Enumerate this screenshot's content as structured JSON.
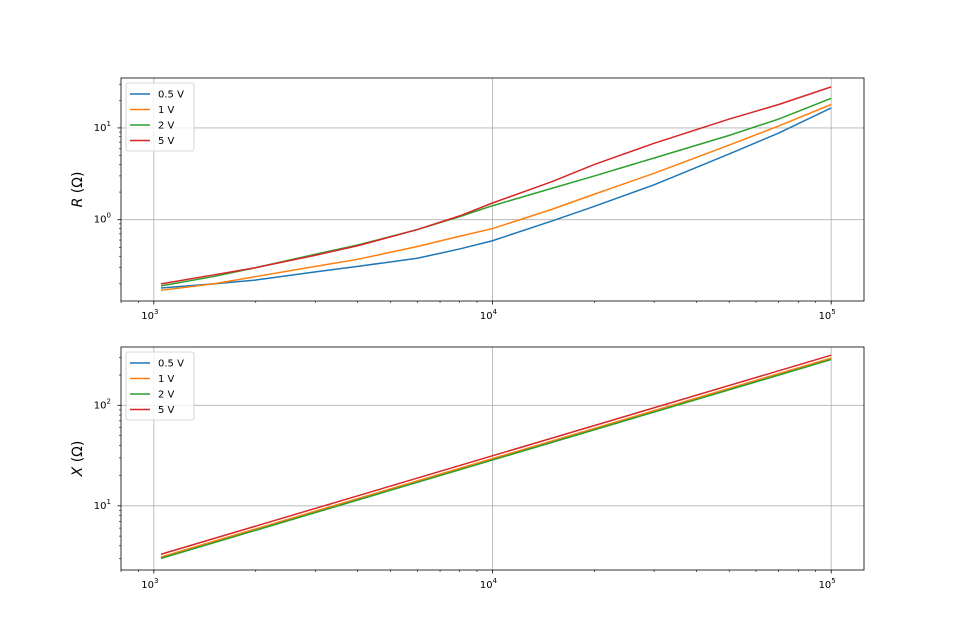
{
  "chart_data": [
    {
      "type": "line",
      "xscale": "log",
      "yscale": "log",
      "xlim": [
        800,
        125000
      ],
      "ylim": [
        0.13,
        35
      ],
      "x_ticks": [
        {
          "value": 1000,
          "base": "10",
          "exp": "3"
        },
        {
          "value": 10000,
          "base": "10",
          "exp": "4"
        },
        {
          "value": 100000,
          "base": "10",
          "exp": "5"
        }
      ],
      "y_ticks": [
        {
          "value": 1,
          "base": "10",
          "exp": "0"
        },
        {
          "value": 10,
          "base": "10",
          "exp": "1"
        }
      ],
      "ylabel": {
        "italic": "R",
        "rest": " (Ω)"
      },
      "grid": true,
      "legend_position": "top-left",
      "x": [
        1050,
        1500,
        2000,
        3000,
        4000,
        6000,
        8000,
        10000,
        15000,
        20000,
        30000,
        50000,
        70000,
        100000
      ],
      "series": [
        {
          "name": "0.5 V",
          "color": "#1f77b4",
          "values": [
            0.18,
            0.2,
            0.22,
            0.27,
            0.31,
            0.38,
            0.48,
            0.59,
            0.97,
            1.4,
            2.4,
            5.2,
            8.8,
            16.5
          ]
        },
        {
          "name": "1 V",
          "color": "#ff7f0e",
          "values": [
            0.17,
            0.2,
            0.24,
            0.31,
            0.37,
            0.51,
            0.66,
            0.8,
            1.3,
            1.9,
            3.2,
            6.5,
            10.5,
            18.0
          ]
        },
        {
          "name": "2 V",
          "color": "#2ca02c",
          "values": [
            0.19,
            0.24,
            0.3,
            0.42,
            0.53,
            0.78,
            1.08,
            1.42,
            2.2,
            3.0,
            4.7,
            8.3,
            12.5,
            21.0
          ]
        },
        {
          "name": "5 V",
          "color": "#d62728",
          "values": [
            0.2,
            0.25,
            0.3,
            0.41,
            0.52,
            0.78,
            1.1,
            1.52,
            2.6,
            4.0,
            6.8,
            12.5,
            18.0,
            28.0
          ]
        }
      ]
    },
    {
      "type": "line",
      "xscale": "log",
      "yscale": "log",
      "xlim": [
        800,
        125000
      ],
      "ylim": [
        2.3,
        380
      ],
      "x_ticks": [
        {
          "value": 1000,
          "base": "10",
          "exp": "3"
        },
        {
          "value": 10000,
          "base": "10",
          "exp": "4"
        },
        {
          "value": 100000,
          "base": "10",
          "exp": "5"
        }
      ],
      "y_ticks": [
        {
          "value": 10,
          "base": "10",
          "exp": "1"
        },
        {
          "value": 100,
          "base": "10",
          "exp": "2"
        }
      ],
      "ylabel": {
        "italic": "X",
        "rest": " (Ω)"
      },
      "grid": true,
      "legend_position": "top-left",
      "x": [
        1050,
        100000
      ],
      "series": [
        {
          "name": "0.5 V",
          "color": "#1f77b4",
          "values": [
            3.05,
            290
          ]
        },
        {
          "name": "1 V",
          "color": "#ff7f0e",
          "values": [
            3.1,
            295
          ]
        },
        {
          "name": "2 V",
          "color": "#2ca02c",
          "values": [
            3.0,
            285
          ]
        },
        {
          "name": "5 V",
          "color": "#d62728",
          "values": [
            3.3,
            315
          ]
        }
      ]
    }
  ]
}
